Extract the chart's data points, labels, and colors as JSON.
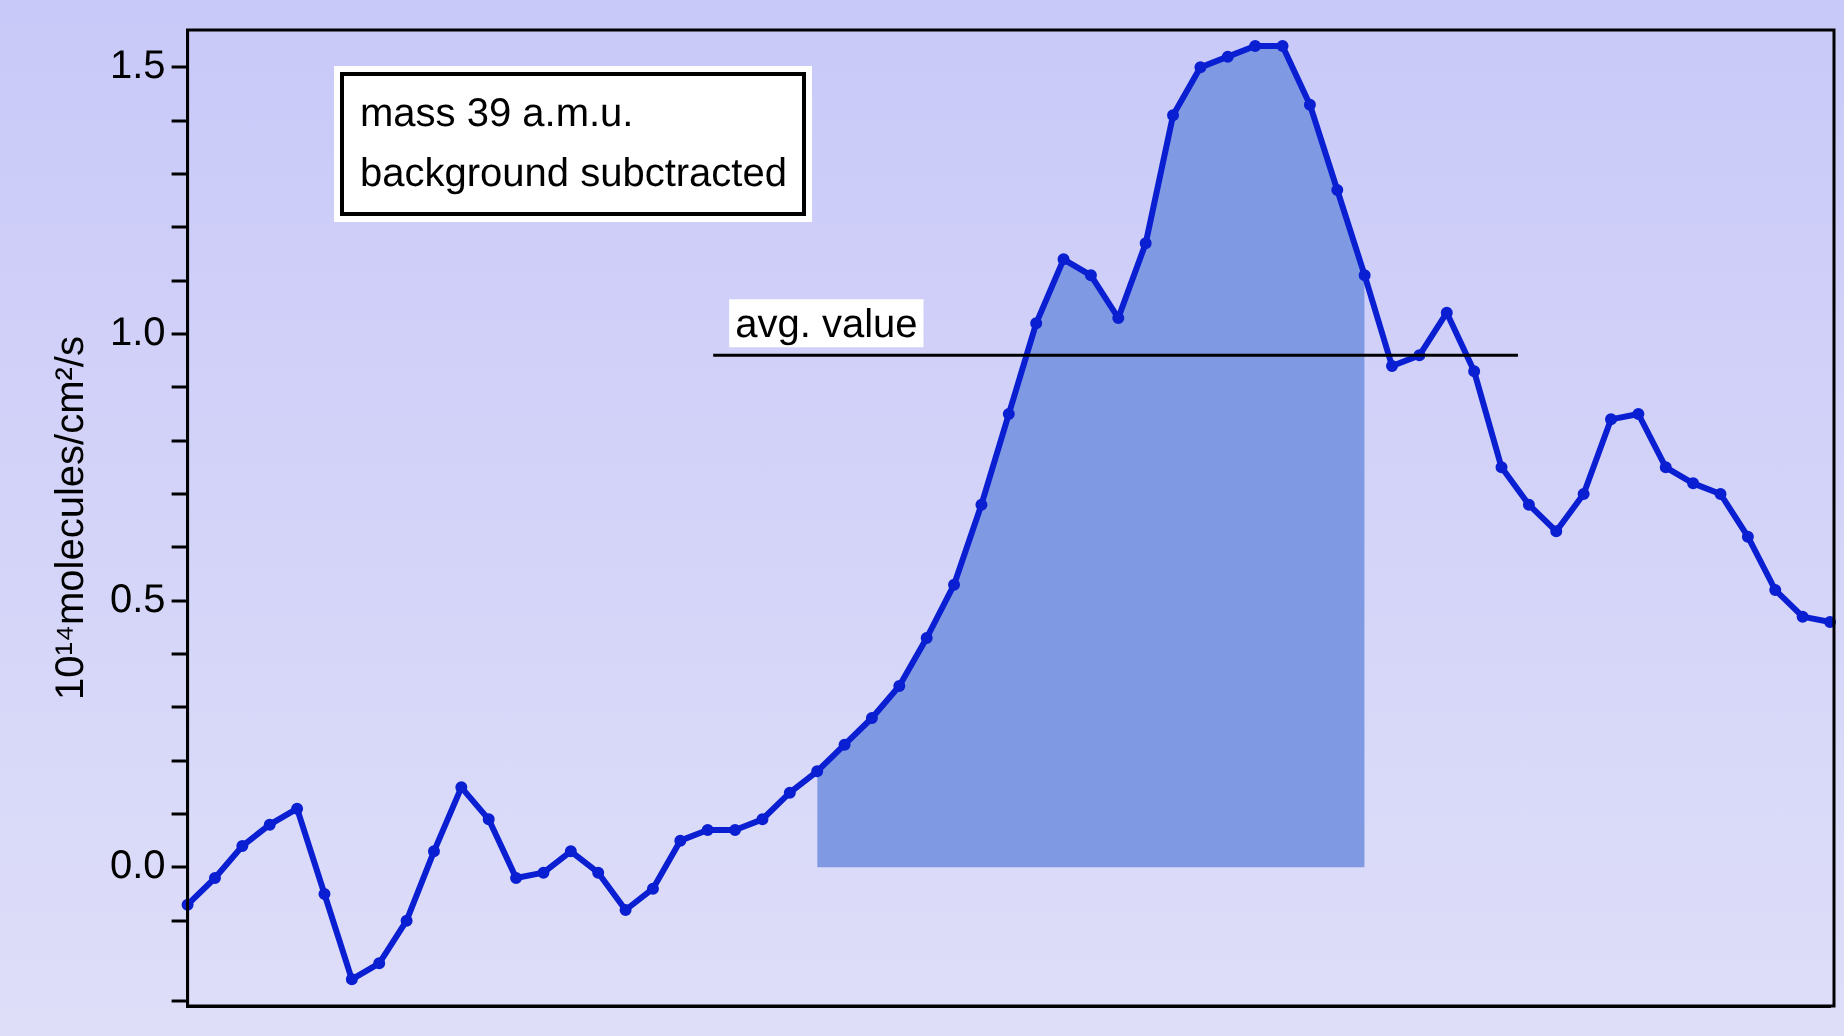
{
  "chart_data": {
    "type": "line",
    "ylabel": "10¹⁴molecules/cm²/s",
    "categories": [
      null,
      null,
      null,
      null,
      null,
      null,
      null,
      null,
      null,
      null,
      null,
      null,
      null,
      null,
      null,
      null,
      null,
      null,
      null,
      null,
      null,
      null,
      null,
      null,
      null,
      null,
      null,
      null,
      null,
      null,
      null,
      null,
      null,
      null,
      null,
      null,
      null,
      null,
      null,
      null,
      null,
      null,
      null,
      null,
      null,
      null,
      null,
      null,
      null,
      null,
      null,
      null,
      null,
      null,
      null,
      null,
      null,
      null,
      null,
      null,
      null
    ],
    "series": [
      {
        "type": "area",
        "color": "#7f99e3",
        "values": [
          null,
          null,
          null,
          null,
          null,
          null,
          null,
          null,
          null,
          null,
          null,
          null,
          null,
          null,
          null,
          null,
          null,
          null,
          null,
          null,
          null,
          null,
          null,
          0.18,
          0.23,
          0.28,
          0.34,
          0.43,
          0.53,
          0.68,
          0.85,
          1.02,
          1.14,
          1.11,
          1.03,
          1.17,
          1.41,
          1.5,
          1.52,
          1.54,
          1.54,
          1.43,
          1.27,
          1.11,
          null,
          null,
          null,
          null,
          null,
          null,
          null,
          null,
          null,
          null,
          null,
          null,
          null,
          null,
          null,
          null,
          null
        ]
      },
      {
        "color": "#0a1ed2",
        "marker": "circle",
        "values": [
          -0.07,
          -0.02,
          0.04,
          0.08,
          0.11,
          -0.05,
          -0.21,
          -0.18,
          -0.1,
          0.03,
          0.15,
          0.09,
          -0.02,
          -0.01,
          0.03,
          -0.01,
          -0.08,
          -0.04,
          0.05,
          0.07,
          0.07,
          0.09,
          0.14,
          0.18,
          0.23,
          0.28,
          0.34,
          0.43,
          0.53,
          0.68,
          0.85,
          1.02,
          1.14,
          1.11,
          1.03,
          1.17,
          1.41,
          1.5,
          1.52,
          1.54,
          1.54,
          1.43,
          1.27,
          1.11,
          0.94,
          0.96,
          1.04,
          0.93,
          0.75,
          0.68,
          0.63,
          0.7,
          0.84,
          0.85,
          0.75,
          0.72,
          0.7,
          0.62,
          0.52,
          0.47,
          0.46
        ]
      }
    ],
    "ylim": [
      -0.26,
      1.57
    ],
    "yticks": [
      {
        "value": -0.25,
        "label": null
      },
      {
        "value": -0.1,
        "label": null
      },
      {
        "value": 0,
        "label": "0.0"
      },
      {
        "value": 0.1,
        "label": null
      },
      {
        "value": 0.2,
        "label": null
      },
      {
        "value": 0.3,
        "label": null
      },
      {
        "value": 0.4,
        "label": null
      },
      0.5,
      {
        "value": 0.6,
        "label": null
      },
      {
        "value": 0.7,
        "label": null
      },
      {
        "value": 0.8,
        "label": null
      },
      {
        "value": 0.9,
        "label": null
      },
      {
        "value": 1,
        "label": "1.0"
      },
      {
        "value": 1.1,
        "label": null
      },
      {
        "value": 1.2,
        "label": null
      },
      {
        "value": 1.3,
        "label": null
      },
      {
        "value": 1.4,
        "label": null
      },
      1.5
    ],
    "tick_labels": "y",
    "grid": false,
    "legend": false,
    "line_style": "solid",
    "ref_lines": [
      {
        "axis": "y",
        "value": 0.96,
        "label": "avg. value",
        "color": "#000000"
      }
    ],
    "annotations": [
      "mass 39 a.m.u.\nbackground subctracted"
    ]
  }
}
